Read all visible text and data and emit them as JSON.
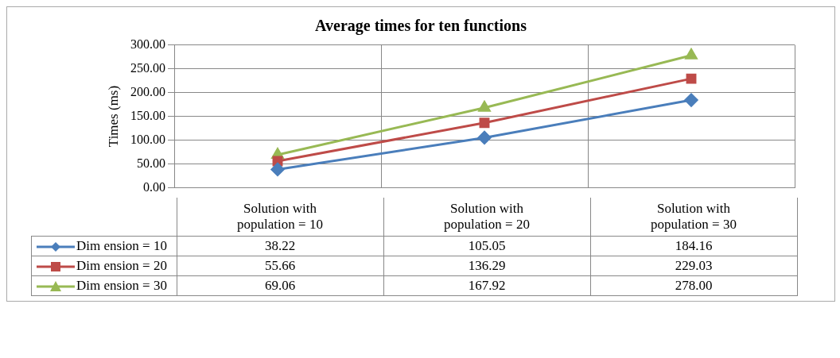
{
  "chart_data": {
    "type": "line",
    "title": "Average times for ten functions",
    "ylabel": "Times (ms)",
    "categories": [
      "Solution with population = 10",
      "Solution with population = 20",
      "Solution with population = 30"
    ],
    "ylim": [
      0,
      300
    ],
    "yticks": [
      {
        "value": 0,
        "label": "0.00"
      },
      {
        "value": 50,
        "label": "50.00"
      },
      {
        "value": 100,
        "label": "100.00"
      },
      {
        "value": 150,
        "label": "150.00"
      },
      {
        "value": 200,
        "label": "200.00"
      },
      {
        "value": 250,
        "label": "250.00"
      },
      {
        "value": 300,
        "label": "300.00"
      }
    ],
    "grid": true,
    "legend": "bottom",
    "data_labels": true,
    "series": [
      {
        "name": "Dim ension = 10",
        "color": "#4a7ebb",
        "marker": "diamond",
        "values": [
          38.22,
          105.05,
          184.16
        ],
        "value_labels": [
          "38.22",
          "105.05",
          "184.16"
        ]
      },
      {
        "name": "Dim ension = 20",
        "color": "#be4b48",
        "marker": "square",
        "values": [
          55.66,
          136.29,
          229.03
        ],
        "value_labels": [
          "55.66",
          "136.29",
          "229.03"
        ]
      },
      {
        "name": "Dim ension = 30",
        "color": "#98b954",
        "marker": "triangle",
        "values": [
          69.06,
          167.92,
          278
        ],
        "value_labels": [
          "69.06",
          "167.92",
          "278.00"
        ]
      }
    ]
  }
}
